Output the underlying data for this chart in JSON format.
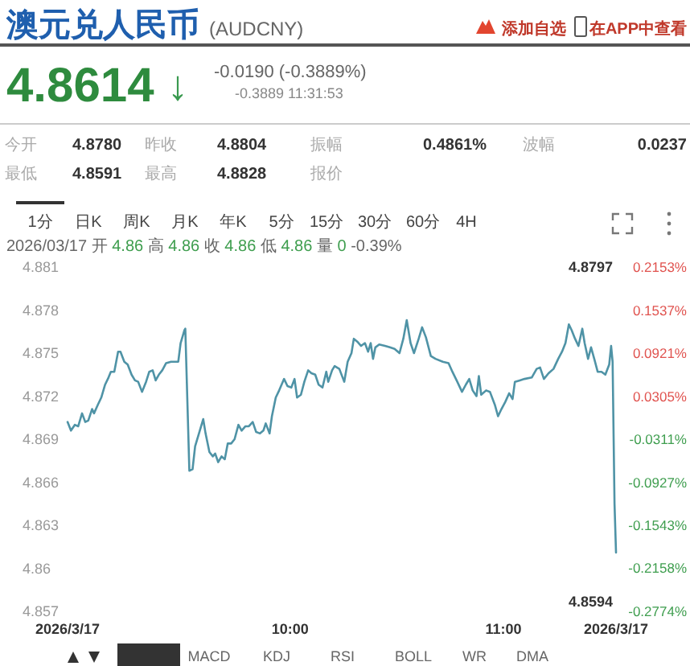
{
  "chart_data": {
    "type": "line",
    "title": "澳元兑人民币",
    "subtitle": "(AUDCNY)",
    "color": "#4f93a6",
    "line_style": "solid",
    "x": [
      8.957,
      8.973,
      8.991,
      9.007,
      9.025,
      9.04,
      9.054,
      9.072,
      9.081,
      9.099,
      9.115,
      9.133,
      9.149,
      9.16,
      9.176,
      9.194,
      9.205,
      9.223,
      9.239,
      9.257,
      9.273,
      9.288,
      9.306,
      9.325,
      9.34,
      9.356,
      9.37,
      9.385,
      9.401,
      9.419,
      9.442,
      9.476,
      9.487,
      9.505,
      9.509,
      9.528,
      9.543,
      9.555,
      9.577,
      9.593,
      9.604,
      9.622,
      9.638,
      9.649,
      9.663,
      9.679,
      9.694,
      9.708,
      9.724,
      9.74,
      9.758,
      9.773,
      9.791,
      9.807,
      9.825,
      9.841,
      9.859,
      9.875,
      9.886,
      9.904,
      9.915,
      9.933,
      9.949,
      9.972,
      9.988,
      10.006,
      10.021,
      10.033,
      10.051,
      10.067,
      10.085,
      10.1,
      10.118,
      10.134,
      10.152,
      10.17,
      10.179,
      10.197,
      10.209,
      10.231,
      10.254,
      10.27,
      10.288,
      10.299,
      10.315,
      10.333,
      10.351,
      10.366,
      10.378,
      10.389,
      10.4,
      10.418,
      10.445,
      10.468,
      10.49,
      10.513,
      10.531,
      10.547,
      10.565,
      10.581,
      10.603,
      10.619,
      10.637,
      10.66,
      10.682,
      10.716,
      10.743,
      10.761,
      10.784,
      10.806,
      10.824,
      10.84,
      10.856,
      10.874,
      10.885,
      10.896,
      10.919,
      10.937,
      10.96,
      10.975,
      10.991,
      11.009,
      11.027,
      11.043,
      11.054,
      11.077,
      11.099,
      11.133,
      11.156,
      11.172,
      11.19,
      11.212,
      11.235,
      11.257,
      11.275,
      11.291,
      11.307,
      11.32,
      11.336,
      11.352,
      11.37,
      11.381,
      11.397,
      11.411,
      11.426,
      11.442,
      11.46,
      11.478,
      11.496,
      11.505,
      11.512,
      11.517,
      11.521,
      11.528
    ],
    "values": [
      4.8702,
      4.8696,
      4.87,
      4.8699,
      4.8708,
      4.8702,
      4.8703,
      4.8711,
      4.8708,
      4.8714,
      4.8719,
      4.8728,
      4.8733,
      4.8737,
      4.8737,
      4.8751,
      4.8751,
      4.8744,
      4.8742,
      4.8735,
      4.8731,
      4.873,
      4.8723,
      4.873,
      4.8737,
      4.8738,
      4.8731,
      4.8735,
      4.8738,
      4.8743,
      4.8744,
      4.8744,
      4.8757,
      4.8766,
      4.8767,
      4.8668,
      4.8669,
      4.8685,
      4.8696,
      4.8704,
      4.8694,
      4.8681,
      4.8678,
      4.868,
      4.8674,
      4.8678,
      4.8676,
      4.8687,
      4.8687,
      4.869,
      4.87,
      4.8696,
      4.8699,
      4.8699,
      4.8702,
      4.8695,
      4.8694,
      4.8696,
      4.8701,
      4.8694,
      4.8706,
      4.8719,
      4.8724,
      4.8732,
      4.8727,
      4.8726,
      4.8732,
      4.8719,
      4.8721,
      4.873,
      4.8738,
      4.8736,
      4.8735,
      4.8728,
      4.8726,
      4.8737,
      4.873,
      4.8738,
      4.8741,
      4.8739,
      4.873,
      4.8744,
      4.875,
      4.876,
      4.8758,
      4.8755,
      4.8757,
      4.8751,
      4.8757,
      4.8746,
      4.8754,
      4.8756,
      4.8755,
      4.8754,
      4.8753,
      4.875,
      4.876,
      4.8773,
      4.8757,
      4.875,
      4.876,
      4.8768,
      4.8761,
      4.8748,
      4.8746,
      4.8744,
      4.8743,
      4.8737,
      4.873,
      4.8723,
      4.8728,
      4.8732,
      4.8724,
      4.872,
      4.8734,
      4.8721,
      4.8724,
      4.8723,
      4.8714,
      4.8706,
      4.8711,
      4.8716,
      4.8722,
      4.8718,
      4.873,
      4.8731,
      4.8732,
      4.8733,
      4.8739,
      4.874,
      4.8732,
      4.8736,
      4.8739,
      4.8746,
      4.8751,
      4.8757,
      4.877,
      4.8766,
      4.876,
      4.8755,
      4.8767,
      4.8757,
      4.8746,
      4.8754,
      4.8746,
      4.8737,
      4.8737,
      4.8735,
      4.8742,
      4.8755,
      4.8744,
      4.8689,
      4.8645,
      4.8611
    ],
    "xlim": [
      8.957,
      11.528
    ],
    "xticks": [
      {
        "value": 8.957,
        "label": "2026/3/17"
      },
      {
        "value": 10,
        "label": "10:00"
      },
      {
        "value": 11,
        "label": "11:00"
      },
      {
        "value": 11.528,
        "label": "2026/3/17"
      }
    ],
    "ylim": [
      4.857,
      4.881
    ],
    "yticks": [
      4.857,
      4.86,
      4.863,
      4.866,
      4.869,
      4.872,
      4.875,
      4.878,
      4.881
    ],
    "y2lim": [
      -0.2774,
      0.2153
    ],
    "y2ticks": [
      {
        "value": -0.2774,
        "label": "-0.2774%"
      },
      {
        "value": -0.2158,
        "label": "-0.2158%"
      },
      {
        "value": -0.1543,
        "label": "-0.1543%"
      },
      {
        "value": -0.0927,
        "label": "-0.0927%"
      },
      {
        "value": -0.0311,
        "label": "-0.0311%"
      },
      {
        "value": 0.0305,
        "label": "0.0305%"
      },
      {
        "value": 0.0921,
        "label": "0.0921%"
      },
      {
        "value": 0.1537,
        "label": "0.1537%"
      },
      {
        "value": 0.2153,
        "label": "0.2153%"
      }
    ],
    "annotations": [
      "添加自选",
      "在APP中查看",
      "4.8614",
      "↓",
      "-0.0190 (-0.3889%)",
      "-0.3889 11:31:53",
      "今开",
      "4.8780",
      "昨收",
      "4.8804",
      "振幅",
      "0.4861%",
      "波幅",
      "0.0237",
      "最低",
      "4.8591",
      "最高",
      "4.8828",
      "报价",
      "1分",
      "日K",
      "周K",
      "月K",
      "年K",
      "5分",
      "15分",
      "30分",
      "60分",
      "4H",
      "2026/03/17 开 4.86 高 4.86 收 4.86 低 4.86 量 0 -0.39%",
      "4.8797",
      "4.8594",
      "MACD",
      "KDJ",
      "RSI",
      "BOLL",
      "WR",
      "DMA"
    ]
  }
}
